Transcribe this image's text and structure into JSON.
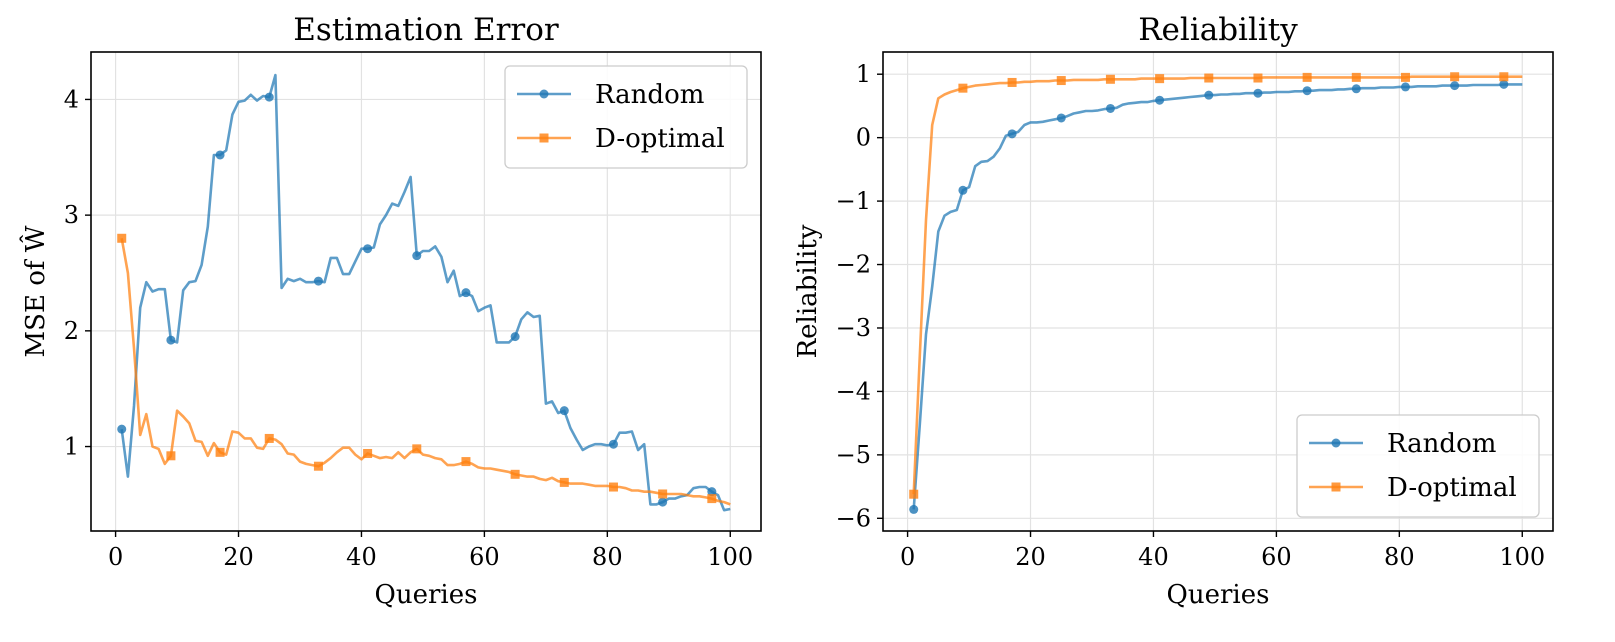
{
  "chart_data": [
    {
      "type": "line",
      "title": "Estimation Error",
      "xlabel": "Queries",
      "ylabel": "MSE of Ŵ",
      "xlim": [
        -4,
        105
      ],
      "ylim": [
        0.27,
        4.41
      ],
      "xticks": [
        0,
        20,
        40,
        60,
        80,
        100
      ],
      "yticks": [
        1,
        2,
        3,
        4
      ],
      "grid": true,
      "legend": "top-right",
      "series": [
        {
          "name": "Random",
          "color": "#1f77b4",
          "marker": "circle",
          "markevery": 8,
          "x": [
            1,
            2,
            3,
            4,
            5,
            6,
            7,
            8,
            9,
            10,
            11,
            12,
            13,
            14,
            15,
            16,
            17,
            18,
            19,
            20,
            21,
            22,
            23,
            24,
            25,
            26,
            27,
            28,
            29,
            30,
            31,
            32,
            33,
            34,
            35,
            36,
            37,
            38,
            39,
            40,
            41,
            42,
            43,
            44,
            45,
            46,
            47,
            48,
            49,
            50,
            51,
            52,
            53,
            54,
            55,
            56,
            57,
            58,
            59,
            60,
            61,
            62,
            63,
            64,
            65,
            66,
            67,
            68,
            69,
            70,
            71,
            72,
            73,
            74,
            75,
            76,
            77,
            78,
            79,
            80,
            81,
            82,
            83,
            84,
            85,
            86,
            87,
            88,
            89,
            90,
            91,
            92,
            93,
            94,
            95,
            96,
            97,
            98,
            99,
            100
          ],
          "y": [
            1.15,
            0.74,
            1.35,
            2.2,
            2.42,
            2.34,
            2.36,
            2.36,
            1.92,
            1.9,
            2.35,
            2.42,
            2.43,
            2.57,
            2.9,
            3.52,
            3.52,
            3.56,
            3.87,
            3.98,
            3.99,
            4.04,
            3.99,
            4.03,
            4.02,
            4.21,
            2.37,
            2.45,
            2.43,
            2.45,
            2.42,
            2.42,
            2.43,
            2.42,
            2.63,
            2.63,
            2.49,
            2.49,
            2.6,
            2.71,
            2.71,
            2.72,
            2.92,
            3.0,
            3.1,
            3.08,
            3.2,
            3.33,
            2.65,
            2.69,
            2.69,
            2.73,
            2.64,
            2.42,
            2.52,
            2.3,
            2.33,
            2.3,
            2.17,
            2.2,
            2.22,
            1.9,
            1.9,
            1.9,
            1.95,
            2.1,
            2.16,
            2.12,
            2.13,
            1.37,
            1.39,
            1.29,
            1.31,
            1.16,
            1.06,
            0.97,
            1.0,
            1.02,
            1.02,
            1.01,
            1.02,
            1.12,
            1.12,
            1.13,
            0.97,
            1.02,
            0.5,
            0.5,
            0.52,
            0.55,
            0.55,
            0.57,
            0.58,
            0.64,
            0.65,
            0.65,
            0.61,
            0.58,
            0.45,
            0.46
          ]
        },
        {
          "name": "D-optimal",
          "color": "#ff7f0e",
          "marker": "square",
          "markevery": 8,
          "x": [
            1,
            2,
            3,
            4,
            5,
            6,
            7,
            8,
            9,
            10,
            11,
            12,
            13,
            14,
            15,
            16,
            17,
            18,
            19,
            20,
            21,
            22,
            23,
            24,
            25,
            26,
            27,
            28,
            29,
            30,
            31,
            32,
            33,
            34,
            35,
            36,
            37,
            38,
            39,
            40,
            41,
            42,
            43,
            44,
            45,
            46,
            47,
            48,
            49,
            50,
            51,
            52,
            53,
            54,
            55,
            56,
            57,
            58,
            59,
            60,
            61,
            62,
            63,
            64,
            65,
            66,
            67,
            68,
            69,
            70,
            71,
            72,
            73,
            74,
            75,
            76,
            77,
            78,
            79,
            80,
            81,
            82,
            83,
            84,
            85,
            86,
            87,
            88,
            89,
            90,
            91,
            92,
            93,
            94,
            95,
            96,
            97,
            98,
            99,
            100
          ],
          "y": [
            2.8,
            2.5,
            1.85,
            1.1,
            1.28,
            1.0,
            0.98,
            0.85,
            0.92,
            1.31,
            1.26,
            1.2,
            1.05,
            1.04,
            0.92,
            1.03,
            0.95,
            0.93,
            1.13,
            1.12,
            1.07,
            1.07,
            0.99,
            0.98,
            1.07,
            1.06,
            1.02,
            0.94,
            0.93,
            0.87,
            0.85,
            0.84,
            0.83,
            0.86,
            0.9,
            0.95,
            0.99,
            0.99,
            0.93,
            0.89,
            0.94,
            0.92,
            0.9,
            0.91,
            0.9,
            0.95,
            0.9,
            0.95,
            0.98,
            0.93,
            0.92,
            0.9,
            0.89,
            0.84,
            0.84,
            0.85,
            0.87,
            0.85,
            0.82,
            0.81,
            0.81,
            0.8,
            0.79,
            0.78,
            0.76,
            0.75,
            0.74,
            0.74,
            0.72,
            0.71,
            0.73,
            0.7,
            0.69,
            0.68,
            0.68,
            0.68,
            0.67,
            0.66,
            0.66,
            0.66,
            0.65,
            0.65,
            0.64,
            0.62,
            0.62,
            0.61,
            0.61,
            0.6,
            0.59,
            0.59,
            0.59,
            0.59,
            0.58,
            0.57,
            0.57,
            0.56,
            0.55,
            0.53,
            0.52,
            0.5
          ]
        }
      ]
    },
    {
      "type": "line",
      "title": "Reliability",
      "xlabel": "Queries",
      "ylabel": "Reliability",
      "xlim": [
        -4,
        105
      ],
      "ylim": [
        -6.2,
        1.35
      ],
      "xticks": [
        0,
        20,
        40,
        60,
        80,
        100
      ],
      "yticks": [
        -6,
        -5,
        -4,
        -3,
        -2,
        -1,
        0,
        1
      ],
      "grid": true,
      "legend": "bottom-right",
      "series": [
        {
          "name": "Random",
          "color": "#1f77b4",
          "marker": "circle",
          "markevery": 8,
          "x": [
            1,
            2,
            3,
            4,
            5,
            6,
            7,
            8,
            9,
            10,
            11,
            12,
            13,
            14,
            15,
            16,
            17,
            18,
            19,
            20,
            21,
            22,
            23,
            24,
            25,
            26,
            27,
            28,
            29,
            30,
            31,
            32,
            33,
            34,
            35,
            36,
            37,
            38,
            39,
            40,
            41,
            42,
            43,
            44,
            45,
            46,
            47,
            48,
            49,
            50,
            51,
            52,
            53,
            54,
            55,
            56,
            57,
            58,
            59,
            60,
            61,
            62,
            63,
            64,
            65,
            66,
            67,
            68,
            69,
            70,
            71,
            72,
            73,
            74,
            75,
            76,
            77,
            78,
            79,
            80,
            81,
            82,
            83,
            84,
            85,
            86,
            87,
            88,
            89,
            90,
            91,
            92,
            93,
            94,
            95,
            96,
            97,
            98,
            99,
            100
          ],
          "y": [
            -5.86,
            -4.5,
            -3.1,
            -2.35,
            -1.48,
            -1.23,
            -1.17,
            -1.14,
            -0.83,
            -0.78,
            -0.45,
            -0.38,
            -0.37,
            -0.3,
            -0.17,
            0.03,
            0.06,
            0.09,
            0.2,
            0.24,
            0.24,
            0.25,
            0.27,
            0.29,
            0.31,
            0.34,
            0.38,
            0.4,
            0.42,
            0.42,
            0.43,
            0.45,
            0.46,
            0.47,
            0.52,
            0.54,
            0.55,
            0.56,
            0.56,
            0.58,
            0.59,
            0.6,
            0.61,
            0.62,
            0.63,
            0.64,
            0.65,
            0.66,
            0.67,
            0.67,
            0.68,
            0.68,
            0.69,
            0.69,
            0.7,
            0.7,
            0.7,
            0.71,
            0.71,
            0.72,
            0.72,
            0.72,
            0.73,
            0.73,
            0.74,
            0.74,
            0.75,
            0.75,
            0.75,
            0.76,
            0.76,
            0.77,
            0.77,
            0.78,
            0.78,
            0.78,
            0.79,
            0.79,
            0.79,
            0.8,
            0.8,
            0.8,
            0.81,
            0.81,
            0.81,
            0.81,
            0.82,
            0.82,
            0.82,
            0.82,
            0.82,
            0.83,
            0.83,
            0.83,
            0.83,
            0.83,
            0.84,
            0.84,
            0.84,
            0.84
          ]
        },
        {
          "name": "D-optimal",
          "color": "#ff7f0e",
          "marker": "square",
          "markevery": 8,
          "x": [
            1,
            2,
            3,
            4,
            5,
            6,
            7,
            8,
            9,
            10,
            11,
            12,
            13,
            14,
            15,
            16,
            17,
            18,
            19,
            20,
            21,
            22,
            23,
            24,
            25,
            26,
            27,
            28,
            29,
            30,
            31,
            32,
            33,
            34,
            35,
            36,
            37,
            38,
            39,
            40,
            41,
            42,
            43,
            44,
            45,
            46,
            47,
            48,
            49,
            50,
            51,
            52,
            53,
            54,
            55,
            56,
            57,
            58,
            59,
            60,
            61,
            62,
            63,
            64,
            65,
            66,
            67,
            68,
            69,
            70,
            71,
            72,
            73,
            74,
            75,
            76,
            77,
            78,
            79,
            80,
            81,
            82,
            83,
            84,
            85,
            86,
            87,
            88,
            89,
            90,
            91,
            92,
            93,
            94,
            95,
            96,
            97,
            98,
            99,
            100
          ],
          "y": [
            -5.62,
            -3.4,
            -1.3,
            0.2,
            0.62,
            0.68,
            0.72,
            0.75,
            0.78,
            0.8,
            0.82,
            0.83,
            0.84,
            0.85,
            0.86,
            0.86,
            0.87,
            0.87,
            0.88,
            0.88,
            0.89,
            0.89,
            0.89,
            0.9,
            0.9,
            0.9,
            0.91,
            0.91,
            0.91,
            0.91,
            0.91,
            0.92,
            0.92,
            0.92,
            0.92,
            0.92,
            0.92,
            0.93,
            0.93,
            0.93,
            0.93,
            0.93,
            0.93,
            0.93,
            0.93,
            0.94,
            0.94,
            0.94,
            0.94,
            0.94,
            0.94,
            0.94,
            0.94,
            0.94,
            0.94,
            0.94,
            0.94,
            0.95,
            0.95,
            0.95,
            0.95,
            0.95,
            0.95,
            0.95,
            0.95,
            0.95,
            0.95,
            0.95,
            0.95,
            0.95,
            0.95,
            0.95,
            0.95,
            0.95,
            0.95,
            0.95,
            0.95,
            0.95,
            0.95,
            0.95,
            0.95,
            0.96,
            0.96,
            0.96,
            0.96,
            0.96,
            0.96,
            0.96,
            0.96,
            0.96,
            0.96,
            0.96,
            0.96,
            0.96,
            0.96,
            0.96,
            0.96,
            0.96,
            0.96,
            0.96
          ]
        }
      ]
    }
  ]
}
